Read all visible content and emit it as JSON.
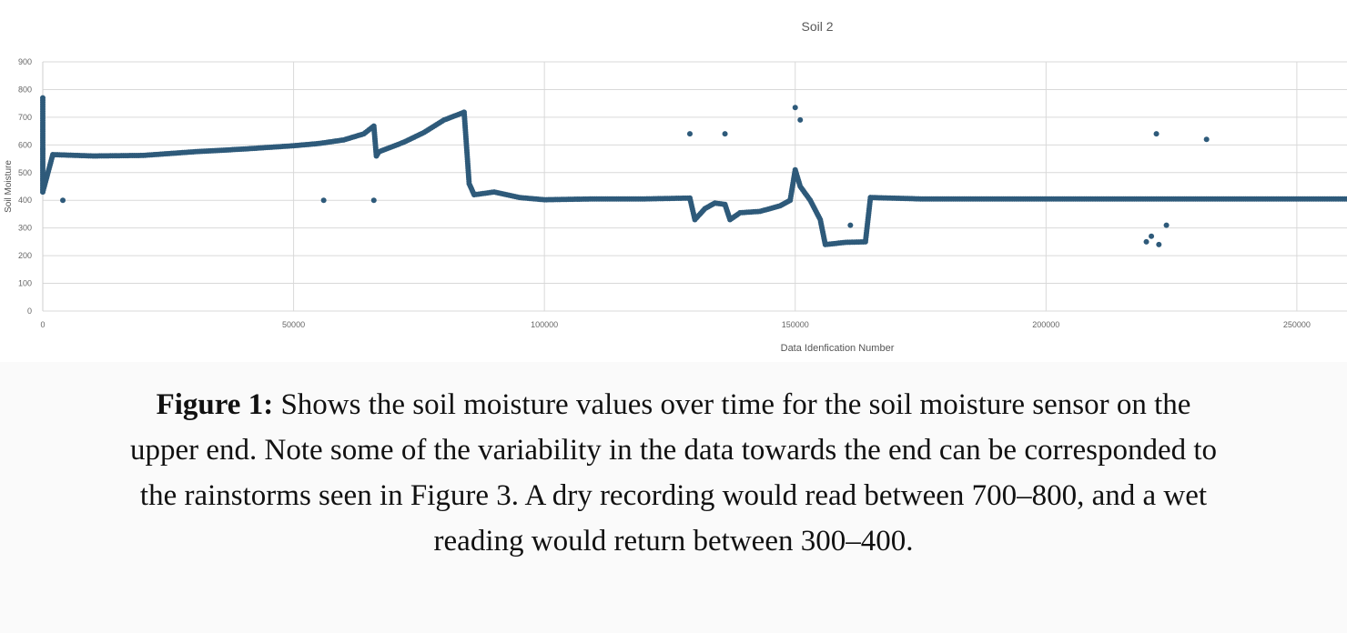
{
  "chart_data": {
    "type": "scatter",
    "title": "Soil 2",
    "xlabel": "Data Idenfication Number",
    "ylabel": "Soil Moisture",
    "xlim": [
      0,
      260000
    ],
    "ylim": [
      0,
      900
    ],
    "x_ticks": [
      0,
      50000,
      100000,
      150000,
      200000,
      250000
    ],
    "x_tick_labels": [
      "0",
      "50000",
      "100000",
      "150000",
      "200000",
      "250000"
    ],
    "y_ticks": [
      0,
      100,
      200,
      300,
      400,
      500,
      600,
      700,
      800,
      900
    ],
    "y_tick_labels": [
      "0",
      "100",
      "200",
      "300",
      "400",
      "500",
      "600",
      "700",
      "800",
      "900"
    ],
    "grid": true,
    "marker_color": "#2e5a7a",
    "series": [
      {
        "trend": [
          [
            0,
            770
          ],
          [
            0,
            680
          ],
          [
            0,
            570
          ],
          [
            0,
            470
          ],
          [
            0,
            430
          ],
          [
            2000,
            565
          ],
          [
            10000,
            560
          ],
          [
            20000,
            562
          ],
          [
            30000,
            575
          ],
          [
            40000,
            585
          ],
          [
            50000,
            597
          ],
          [
            55000,
            605
          ],
          [
            60000,
            618
          ],
          [
            64000,
            640
          ],
          [
            66000,
            668
          ],
          [
            66500,
            560
          ],
          [
            67000,
            575
          ],
          [
            72000,
            610
          ],
          [
            76000,
            645
          ],
          [
            80000,
            690
          ],
          [
            84000,
            718
          ],
          [
            85000,
            460
          ],
          [
            86000,
            420
          ],
          [
            90000,
            430
          ],
          [
            95000,
            410
          ],
          [
            100000,
            402
          ],
          [
            110000,
            405
          ],
          [
            120000,
            405
          ],
          [
            129000,
            408
          ],
          [
            130000,
            330
          ],
          [
            132000,
            370
          ],
          [
            134000,
            390
          ],
          [
            136000,
            385
          ],
          [
            137000,
            330
          ],
          [
            139000,
            355
          ],
          [
            143000,
            360
          ],
          [
            147000,
            380
          ],
          [
            149000,
            400
          ],
          [
            150000,
            510
          ],
          [
            151000,
            450
          ],
          [
            153000,
            400
          ],
          [
            155000,
            330
          ],
          [
            156000,
            240
          ],
          [
            160000,
            248
          ],
          [
            164000,
            250
          ],
          [
            165000,
            410
          ],
          [
            175000,
            405
          ],
          [
            185000,
            405
          ],
          [
            195000,
            405
          ],
          [
            205000,
            405
          ],
          [
            215000,
            405
          ],
          [
            225000,
            405
          ],
          [
            235000,
            405
          ],
          [
            245000,
            405
          ],
          [
            260000,
            405
          ]
        ],
        "outliers": [
          [
            0,
            585
          ],
          [
            4000,
            400
          ],
          [
            56000,
            400
          ],
          [
            66000,
            400
          ],
          [
            129000,
            640
          ],
          [
            136000,
            640
          ],
          [
            150000,
            735
          ],
          [
            151000,
            690
          ],
          [
            161000,
            310
          ],
          [
            220000,
            250
          ],
          [
            221000,
            270
          ],
          [
            222000,
            640
          ],
          [
            222500,
            240
          ],
          [
            224000,
            310
          ],
          [
            232000,
            620
          ]
        ]
      }
    ]
  },
  "caption": {
    "label": "Figure 1:",
    "text": " Shows the soil moisture values over time for the soil moisture sensor on the upper end. Note some of the variability in the data towards the end can be corresponded to the rainstorms seen in Figure 3. A dry recording would read between 700–800, and a wet reading would return between 300–400."
  }
}
